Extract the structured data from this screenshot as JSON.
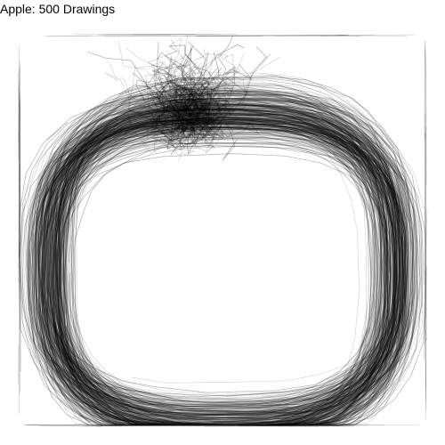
{
  "title": "Apple: 500 Drawings",
  "overlay": {
    "drawing_count": 500,
    "stroke_color": "#000000",
    "background_color": "#ffffff"
  }
}
